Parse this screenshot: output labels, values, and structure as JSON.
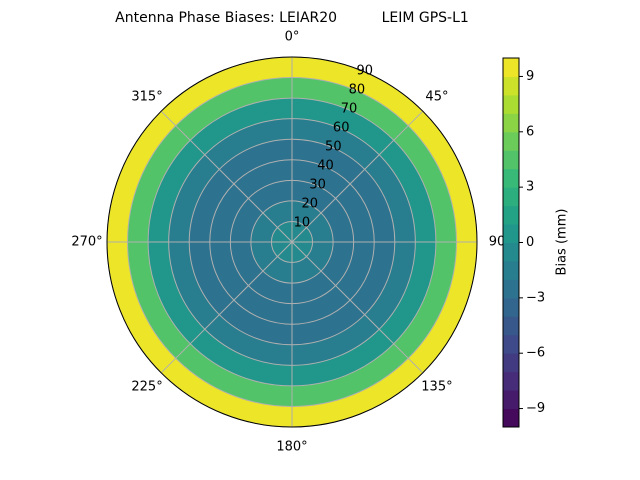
{
  "chart_data": {
    "type": "polar-contour",
    "title": "Antenna Phase Biases: LEIAR20          LEIM GPS-L1",
    "r": [
      0,
      10,
      20,
      30,
      40,
      50,
      60,
      70,
      80,
      90
    ],
    "values": [
      -1,
      -1,
      -2,
      -3,
      -3,
      -3,
      -2,
      0,
      4,
      10
    ],
    "rlim": [
      0,
      90
    ],
    "rticks": [
      10,
      20,
      30,
      40,
      50,
      60,
      70,
      80,
      90
    ],
    "thetaticks": [
      {
        "value": 0,
        "label": "0°"
      },
      {
        "value": 45,
        "label": "45°"
      },
      {
        "value": 90,
        "label": "90"
      },
      {
        "value": 135,
        "label": "135°"
      },
      {
        "value": 180,
        "label": "180°"
      },
      {
        "value": 225,
        "label": "225°"
      },
      {
        "value": 270,
        "label": "270°"
      },
      {
        "value": 315,
        "label": "315°"
      }
    ],
    "clim": [
      -10,
      10
    ],
    "cticks": [
      {
        "value": -9,
        "label": "−9"
      },
      {
        "value": -6,
        "label": "−6"
      },
      {
        "value": -3,
        "label": "−3"
      },
      0,
      3,
      6,
      9
    ],
    "colorbar_label": "Bias (mm)",
    "grid": true
  }
}
